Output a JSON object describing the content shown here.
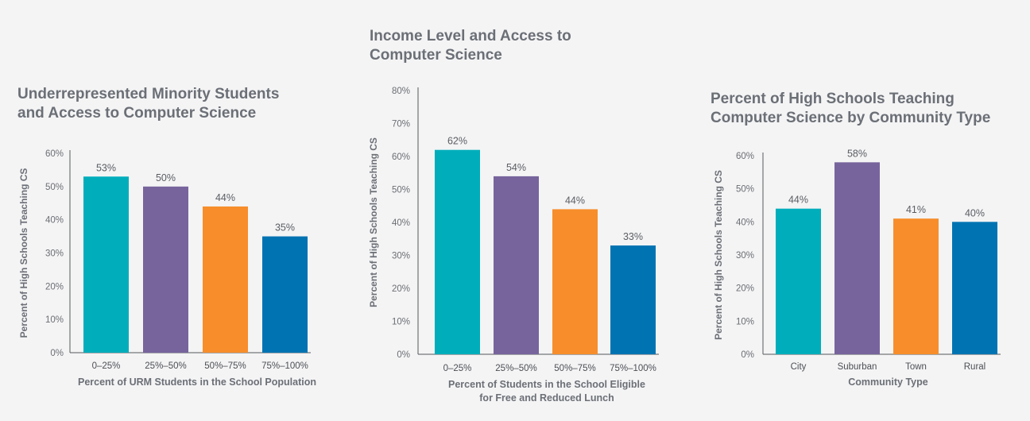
{
  "colors": [
    "#00aebb",
    "#77649c",
    "#f78e2b",
    "#0073b2"
  ],
  "chart_data": [
    {
      "type": "bar",
      "title": "Underrepresented Minority Students\nand Access to Computer Science",
      "xlabel": "Percent of URM Students in the School Population",
      "ylabel": "Percent of High Schools Teaching CS",
      "categories": [
        "0–25%",
        "25%–50%",
        "50%–75%",
        "75%–100%"
      ],
      "values": [
        53,
        50,
        44,
        35
      ],
      "value_labels": [
        "53%",
        "50%",
        "44%",
        "35%"
      ],
      "ylim": [
        0,
        60
      ],
      "yticks": [
        "0%",
        "10%",
        "20%",
        "30%",
        "40%",
        "50%",
        "60%"
      ]
    },
    {
      "type": "bar",
      "title": "Income Level and Access to\nComputer Science",
      "xlabel": "Percent of Students in the School Eligible\nfor Free and Reduced Lunch",
      "ylabel": "Percent of High Schools Teaching CS",
      "categories": [
        "0–25%",
        "25%–50%",
        "50%–75%",
        "75%–100%"
      ],
      "values": [
        62,
        54,
        44,
        33
      ],
      "value_labels": [
        "62%",
        "54%",
        "44%",
        "33%"
      ],
      "ylim": [
        0,
        80
      ],
      "yticks": [
        "0%",
        "10%",
        "20%",
        "30%",
        "40%",
        "50%",
        "60%",
        "70%",
        "80%"
      ]
    },
    {
      "type": "bar",
      "title": "Percent of High Schools Teaching\nComputer Science by Community Type",
      "xlabel": "Community Type",
      "ylabel": "Percent of High Schools Teaching CS",
      "categories": [
        "City",
        "Suburban",
        "Town",
        "Rural"
      ],
      "values": [
        44,
        58,
        41,
        40
      ],
      "value_labels": [
        "44%",
        "58%",
        "41%",
        "40%"
      ],
      "ylim": [
        0,
        60
      ],
      "yticks": [
        "0%",
        "10%",
        "20%",
        "30%",
        "40%",
        "50%",
        "60%"
      ]
    }
  ]
}
